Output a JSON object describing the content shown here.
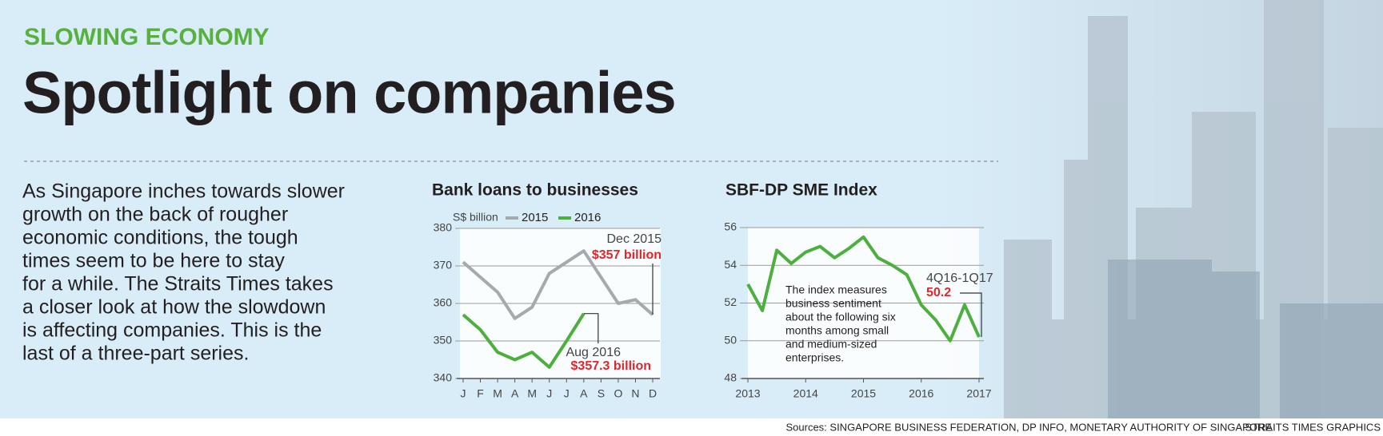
{
  "kicker": "SLOWING ECONOMY",
  "title": "Spotlight on companies",
  "intro": [
    "As Singapore inches towards slower",
    "growth on the back of rougher",
    "economic conditions, the tough",
    "times seem to be here to stay",
    "for a while. The Straits Times takes",
    "a closer look at how the slowdown",
    "is affecting companies. This is the",
    "last of a three-part series."
  ],
  "sources": "Sources: SINGAPORE BUSINESS FEDERATION, DP INFO, MONETARY AUTHORITY OF SINGAPORE",
  "credit": "STRAITS TIMES GRAPHICS",
  "chart_data": [
    {
      "type": "line",
      "title": "Bank loans to businesses",
      "y_label": "S$ billion",
      "categories": [
        "J",
        "F",
        "M",
        "A",
        "M",
        "J",
        "J",
        "A",
        "S",
        "O",
        "N",
        "D"
      ],
      "series": [
        {
          "name": "2015",
          "color": "#a4abae",
          "values": [
            371,
            367,
            363,
            356,
            359,
            368,
            371,
            374,
            367,
            360,
            361,
            357
          ],
          "value_labels": [
            null,
            null,
            null,
            null,
            null,
            null,
            null,
            null,
            null,
            null,
            null,
            "$357 billion"
          ]
        },
        {
          "name": "2016",
          "color": "#4caf3e",
          "values": [
            357,
            353,
            347,
            345,
            347,
            343,
            350,
            357.3,
            null,
            null,
            null,
            null
          ],
          "value_labels": [
            null,
            null,
            null,
            null,
            null,
            null,
            null,
            "$357.3 billion",
            null,
            null,
            null,
            null
          ]
        }
      ],
      "annotations": [
        "Dec 2015",
        "Aug 2016"
      ],
      "ylim": [
        340,
        380
      ],
      "yticks": [
        340,
        350,
        360,
        370,
        380
      ],
      "grid": true,
      "legend": "top"
    },
    {
      "type": "line",
      "title": "SBF-DP SME Index",
      "x": [
        2013,
        2013.25,
        2013.5,
        2013.75,
        2014,
        2014.25,
        2014.5,
        2014.75,
        2015,
        2015.25,
        2015.5,
        2015.75,
        2016,
        2016.25,
        2016.5,
        2016.75,
        2017
      ],
      "series": [
        {
          "color": "#4caf3e",
          "values": [
            53,
            51.6,
            54.8,
            54.1,
            54.7,
            55,
            54.4,
            54.9,
            55.5,
            54.4,
            54,
            53.5,
            51.9,
            51.1,
            50,
            51.9,
            50.2
          ],
          "value_labels": [
            null,
            null,
            null,
            null,
            null,
            null,
            null,
            null,
            null,
            null,
            null,
            null,
            null,
            null,
            null,
            null,
            "50.2"
          ]
        }
      ],
      "annotations": [
        "4Q16-1Q17"
      ],
      "note": [
        "The index measures",
        "business sentiment",
        "about the following six",
        "months among small",
        "and medium-sized",
        "enterprises."
      ],
      "xlim": [
        2013,
        2017
      ],
      "xticks": [
        2013,
        2014,
        2015,
        2016,
        2017
      ],
      "ylim": [
        48,
        56
      ],
      "yticks": [
        48,
        50,
        52,
        54,
        56
      ],
      "grid": true
    }
  ]
}
